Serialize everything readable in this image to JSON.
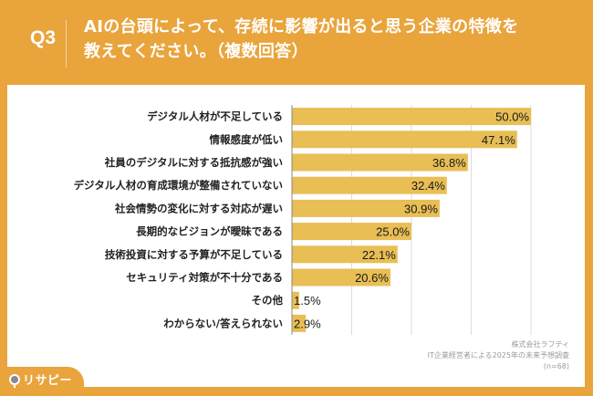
{
  "header": {
    "question_number": "Q3",
    "title_line1": "AIの台頭によって、存続に影響が出ると思う企業の特徴を",
    "title_line2": "教えてください。（複数回答）"
  },
  "logo": {
    "text": "リサピー",
    "icon": "map-pin-icon"
  },
  "source": {
    "company": "株式会社ラフティ",
    "survey": "IT企業経営者による2025年の未来予想調査",
    "sample": "(n=68)"
  },
  "colors": {
    "background": "#E9A43C",
    "bar": "#E8BE55",
    "panel": "#FFFFFF",
    "grid": "#DDDDDD"
  },
  "chart_data": {
    "type": "bar",
    "orientation": "horizontal",
    "title": "AIの台頭によって、存続に影響が出ると思う企業の特徴を教えてください。（複数回答）",
    "xlabel": "",
    "ylabel": "",
    "xlim": [
      0,
      50
    ],
    "grid": true,
    "gridlines": [
      12.5,
      25,
      37.5,
      50
    ],
    "unit": "%",
    "categories": [
      "デジタル人材が不足している",
      "情報感度が低い",
      "社員のデジタルに対する抵抗感が強い",
      "デジタル人材の育成環境が整備されていない",
      "社会情勢の変化に対する対応が遅い",
      "長期的なビジョンが曖昧である",
      "技術投資に対する予算が不足している",
      "セキュリティ対策が不十分である",
      "その他",
      "わからない/答えられない"
    ],
    "values": [
      50.0,
      47.1,
      36.8,
      32.4,
      30.9,
      25.0,
      22.1,
      20.6,
      1.5,
      2.9
    ],
    "labels": [
      "50.0%",
      "47.1%",
      "36.8%",
      "32.4%",
      "30.9%",
      "25.0%",
      "22.1%",
      "20.6%",
      "1.5%",
      "2.9%"
    ]
  }
}
